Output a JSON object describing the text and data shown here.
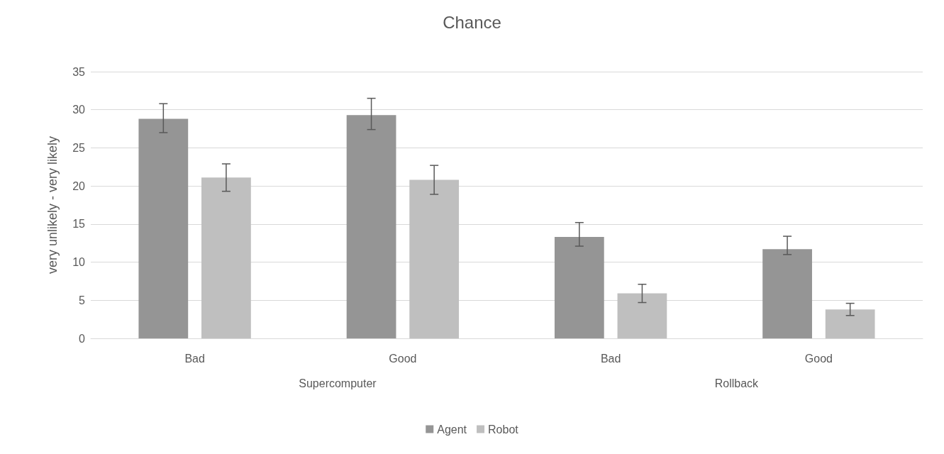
{
  "chart_data": {
    "type": "bar",
    "title": "Chance",
    "ylabel": "very unlikely - very likely",
    "categories": [
      "Bad",
      "Good",
      "Bad",
      "Good"
    ],
    "series": [
      {
        "name": "Agent",
        "color": "#959595",
        "values": [
          28.8,
          29.3,
          13.3,
          11.7
        ],
        "errors": [
          [
            27.0,
            30.8
          ],
          [
            27.4,
            31.5
          ],
          [
            12.1,
            15.2
          ],
          [
            11.0,
            13.4
          ]
        ]
      },
      {
        "name": "Robot",
        "color": "#bfbfbf",
        "values": [
          21.1,
          20.8,
          5.9,
          3.8
        ],
        "errors": [
          [
            19.3,
            22.9
          ],
          [
            18.9,
            22.7
          ],
          [
            4.7,
            7.1
          ],
          [
            3.0,
            4.6
          ]
        ]
      }
    ],
    "annotations": [
      "Supercomputer",
      "Rollback"
    ],
    "ylim": [
      0,
      35
    ],
    "yticks": [
      0,
      5,
      10,
      15,
      20,
      25,
      30,
      35
    ],
    "grid": "y",
    "legend": "bottom"
  }
}
